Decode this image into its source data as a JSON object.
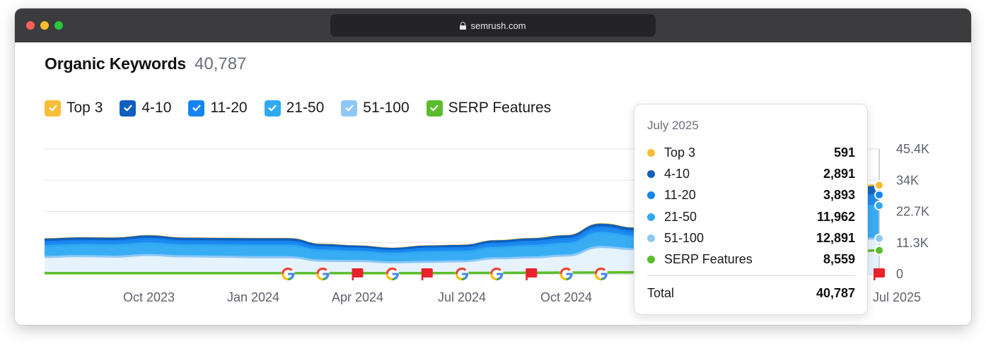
{
  "browser": {
    "url": "semrush.com"
  },
  "widget": {
    "title": "Organic Keywords",
    "count": "40,787"
  },
  "legend": [
    {
      "label": "Top 3",
      "color": "#f7bd36",
      "checked": true
    },
    {
      "label": "4-10",
      "color": "#0e5fbe",
      "checked": true
    },
    {
      "label": "11-20",
      "color": "#1585ee",
      "checked": true
    },
    {
      "label": "21-50",
      "color": "#2fa9f2",
      "checked": true
    },
    {
      "label": "51-100",
      "color": "#8ec8f7",
      "checked": true
    },
    {
      "label": "SERP Features",
      "color": "#5bbd2c",
      "checked": true
    }
  ],
  "tooltip": {
    "date": "July 2025",
    "rows": [
      {
        "name": "Top 3",
        "value": "591",
        "color": "#f7bd36"
      },
      {
        "name": "4-10",
        "value": "2,891",
        "color": "#0e5fbe"
      },
      {
        "name": "11-20",
        "value": "3,893",
        "color": "#1585ee"
      },
      {
        "name": "21-50",
        "value": "11,962",
        "color": "#2fa9f2"
      },
      {
        "name": "51-100",
        "value": "12,891",
        "color": "#8ec8f7"
      },
      {
        "name": "SERP Features",
        "value": "8,559",
        "color": "#5bbd2c"
      }
    ],
    "total_label": "Total",
    "total_value": "40,787"
  },
  "chart_data": {
    "type": "area",
    "stacked": true,
    "x_tick_labels": [
      "Oct 2023",
      "Jan 2024",
      "Apr 2024",
      "Jul 2024",
      "Oct 2024",
      "Jul 2025"
    ],
    "y_tick_labels": [
      "45.4K",
      "34K",
      "22.7K",
      "11.3K",
      "0"
    ],
    "ylim": [
      0,
      45400
    ],
    "x": [
      "Jul 2023",
      "Aug 2023",
      "Sep 2023",
      "Oct 2023",
      "Nov 2023",
      "Dec 2023",
      "Jan 2024",
      "Feb 2024",
      "Mar 2024",
      "Apr 2024",
      "May 2024",
      "Jun 2024",
      "Jul 2024",
      "Aug 2024",
      "Sep 2024",
      "Oct 2024",
      "Nov 2024",
      "Dec 2024",
      "Jan 2025",
      "Feb 2025",
      "Mar 2025",
      "Apr 2025",
      "May 2025",
      "Jun 2025",
      "Jul 2025"
    ],
    "series": [
      {
        "name": "51-100",
        "color": "#8ec8f7",
        "values": [
          6200,
          6500,
          6300,
          6900,
          6400,
          6300,
          6100,
          6100,
          4800,
          4700,
          4200,
          4400,
          4600,
          5700,
          6000,
          6700,
          9800,
          9000,
          10500,
          11000,
          11500,
          12000,
          12300,
          12600,
          12891
        ]
      },
      {
        "name": "21-50",
        "color": "#2fa9f2",
        "values": [
          3900,
          4000,
          4100,
          4200,
          4000,
          4000,
          4100,
          4100,
          3600,
          3300,
          3100,
          3500,
          3400,
          3800,
          4100,
          4300,
          5100,
          4600,
          7000,
          8200,
          9000,
          10000,
          11000,
          11500,
          11962
        ]
      },
      {
        "name": "11-20",
        "color": "#1585ee",
        "values": [
          1500,
          1500,
          1500,
          1600,
          1500,
          1500,
          1500,
          1500,
          1300,
          1200,
          1100,
          1300,
          1400,
          1500,
          1600,
          1700,
          1900,
          1800,
          2500,
          2800,
          3100,
          3400,
          3600,
          3800,
          3893
        ]
      },
      {
        "name": "4-10",
        "color": "#0e5fbe",
        "values": [
          900,
          900,
          900,
          950,
          900,
          900,
          900,
          900,
          800,
          750,
          700,
          750,
          800,
          850,
          900,
          950,
          1100,
          1000,
          1600,
          1900,
          2200,
          2400,
          2600,
          2800,
          2891
        ]
      },
      {
        "name": "Top 3",
        "color": "#f7bd36",
        "values": [
          150,
          150,
          150,
          160,
          150,
          150,
          150,
          150,
          130,
          120,
          110,
          120,
          130,
          140,
          150,
          160,
          190,
          180,
          300,
          350,
          400,
          450,
          500,
          560,
          591
        ]
      },
      {
        "name": "SERP Features",
        "color": "#5bbd2c",
        "stacked": false,
        "values": [
          300,
          300,
          300,
          300,
          300,
          300,
          300,
          300,
          300,
          300,
          300,
          300,
          350,
          400,
          450,
          500,
          550,
          600,
          2000,
          3500,
          5000,
          6500,
          7500,
          8100,
          8559
        ]
      }
    ],
    "grid": true,
    "annotations": [
      {
        "type": "google-update",
        "x": "Feb 2024"
      },
      {
        "type": "google-update",
        "x": "Mar 2024"
      },
      {
        "type": "flag",
        "x": "Apr 2024"
      },
      {
        "type": "google-update",
        "x": "May 2024"
      },
      {
        "type": "flag",
        "x": "Jun 2024"
      },
      {
        "type": "google-update",
        "x": "Jul 2024"
      },
      {
        "type": "google-update",
        "x": "Aug 2024"
      },
      {
        "type": "flag",
        "x": "Sep 2024"
      },
      {
        "type": "google-update",
        "x": "Oct 2024"
      },
      {
        "type": "google-update",
        "x": "Nov 2024"
      },
      {
        "type": "flag",
        "x": "Jul 2025"
      }
    ],
    "highlight_x": "Jul 2025"
  }
}
